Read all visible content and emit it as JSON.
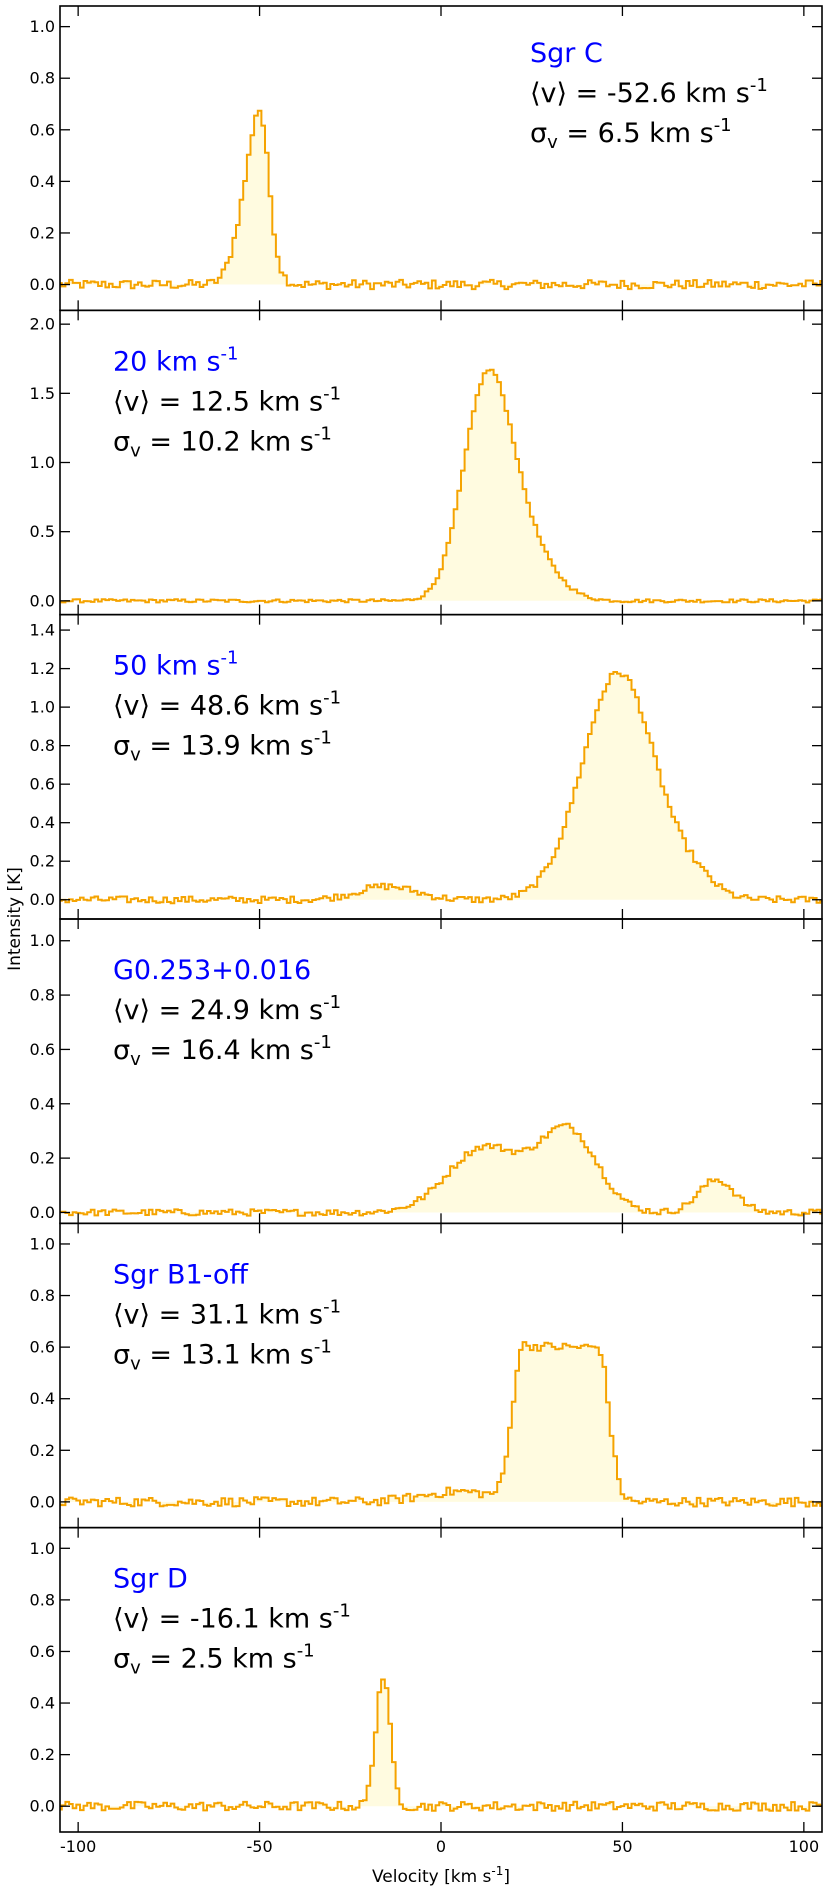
{
  "chart_data": {
    "type": "line",
    "style": "step-filled",
    "line_color": "#f5a300",
    "fill_color": "#fffbe0",
    "text_color_name": "#0000ff",
    "xlabel": "Velocity",
    "xlabel_unit_main": "km s",
    "xlabel_unit_exp": "-1",
    "ylabel": "Intensity  [K]",
    "xlim": [
      -105,
      105
    ],
    "x_ticks": [
      -100,
      -50,
      0,
      50,
      100
    ],
    "x_tick_labels": [
      "-100",
      "-50",
      "0",
      "50",
      "100"
    ],
    "unit_main": "km s",
    "unit_exp": "-1",
    "mean_symbol": "⟨v⟩",
    "sigma_symbol": "σ",
    "sigma_sub": "v",
    "panels": [
      {
        "name_main": "Sgr C",
        "name_sup": "",
        "mean_value": "-52.6",
        "sigma_value": "6.5",
        "ylim": [
          -0.1,
          1.08
        ],
        "y_ticks": [
          0.0,
          0.2,
          0.4,
          0.6,
          0.8,
          1.0
        ],
        "y_tick_labels": [
          "0.0",
          "0.2",
          "0.4",
          "0.6",
          "0.8",
          "1.0"
        ],
        "label_side": "right",
        "components": [
          {
            "center": -52,
            "sigma": 3.8,
            "amp": 0.42
          },
          {
            "center": -49.5,
            "sigma": 2.2,
            "amp": 0.32
          }
        ],
        "noise": 0.018
      },
      {
        "name_main": "20 km s",
        "name_sup": "-1",
        "mean_value": "12.5",
        "sigma_value": "10.2",
        "ylim": [
          -0.1,
          2.1
        ],
        "y_ticks": [
          0.0,
          0.5,
          1.0,
          1.5,
          2.0
        ],
        "y_tick_labels": [
          "0.0",
          "0.5",
          "1.0",
          "1.5",
          "2.0"
        ],
        "label_side": "left",
        "components": [
          {
            "center": 12.5,
            "sigma": 6.5,
            "amp": 1.45
          },
          {
            "center": 22,
            "sigma": 8,
            "amp": 0.42
          }
        ],
        "noise": 0.012
      },
      {
        "name_main": "50 km s",
        "name_sup": "-1",
        "mean_value": "48.6",
        "sigma_value": "13.9",
        "ylim": [
          -0.1,
          1.48
        ],
        "y_ticks": [
          0.0,
          0.2,
          0.4,
          0.6,
          0.8,
          1.0,
          1.2,
          1.4
        ],
        "y_tick_labels": [
          "0.0",
          "0.2",
          "0.4",
          "0.6",
          "0.8",
          "1.0",
          "1.2",
          "1.4"
        ],
        "label_side": "left",
        "components": [
          {
            "center": 49,
            "sigma": 10,
            "amp": 1.18
          },
          {
            "center": 70,
            "sigma": 6,
            "amp": 0.08
          },
          {
            "center": -15,
            "sigma": 8,
            "amp": 0.07
          }
        ],
        "noise": 0.018
      },
      {
        "name_main": "G0.253+0.016",
        "name_sup": "",
        "mean_value": "24.9",
        "sigma_value": "16.4",
        "ylim": [
          -0.04,
          1.08
        ],
        "y_ticks": [
          0.0,
          0.2,
          0.4,
          0.6,
          0.8,
          1.0
        ],
        "y_tick_labels": [
          "0.0",
          "0.2",
          "0.4",
          "0.6",
          "0.8",
          "1.0"
        ],
        "label_side": "left",
        "components": [
          {
            "center": 35,
            "sigma": 8,
            "amp": 0.3
          },
          {
            "center": 12,
            "sigma": 10,
            "amp": 0.24
          },
          {
            "center": 76,
            "sigma": 5,
            "amp": 0.12
          }
        ],
        "noise": 0.012
      },
      {
        "name_main": "Sgr B1-off",
        "name_sup": "",
        "mean_value": "31.1",
        "sigma_value": "13.1",
        "ylim": [
          -0.1,
          1.08
        ],
        "y_ticks": [
          0.0,
          0.2,
          0.4,
          0.6,
          0.8,
          1.0
        ],
        "y_tick_labels": [
          "0.0",
          "0.2",
          "0.4",
          "0.6",
          "0.8",
          "1.0"
        ],
        "label_side": "left",
        "components": [
          {
            "center": 33,
            "sigma": 9,
            "amp": 0.6,
            "flat": true
          },
          {
            "center": 5,
            "sigma": 10,
            "amp": 0.04
          }
        ],
        "noise": 0.018
      },
      {
        "name_main": "Sgr D",
        "name_sup": "",
        "mean_value": "-16.1",
        "sigma_value": "2.5",
        "ylim": [
          -0.1,
          1.08
        ],
        "y_ticks": [
          0.0,
          0.2,
          0.4,
          0.6,
          0.8,
          1.0
        ],
        "y_tick_labels": [
          "0.0",
          "0.2",
          "0.4",
          "0.6",
          "0.8",
          "1.0"
        ],
        "label_side": "left",
        "components": [
          {
            "center": -16,
            "sigma": 2,
            "amp": 0.5
          }
        ],
        "noise": 0.018
      }
    ]
  }
}
